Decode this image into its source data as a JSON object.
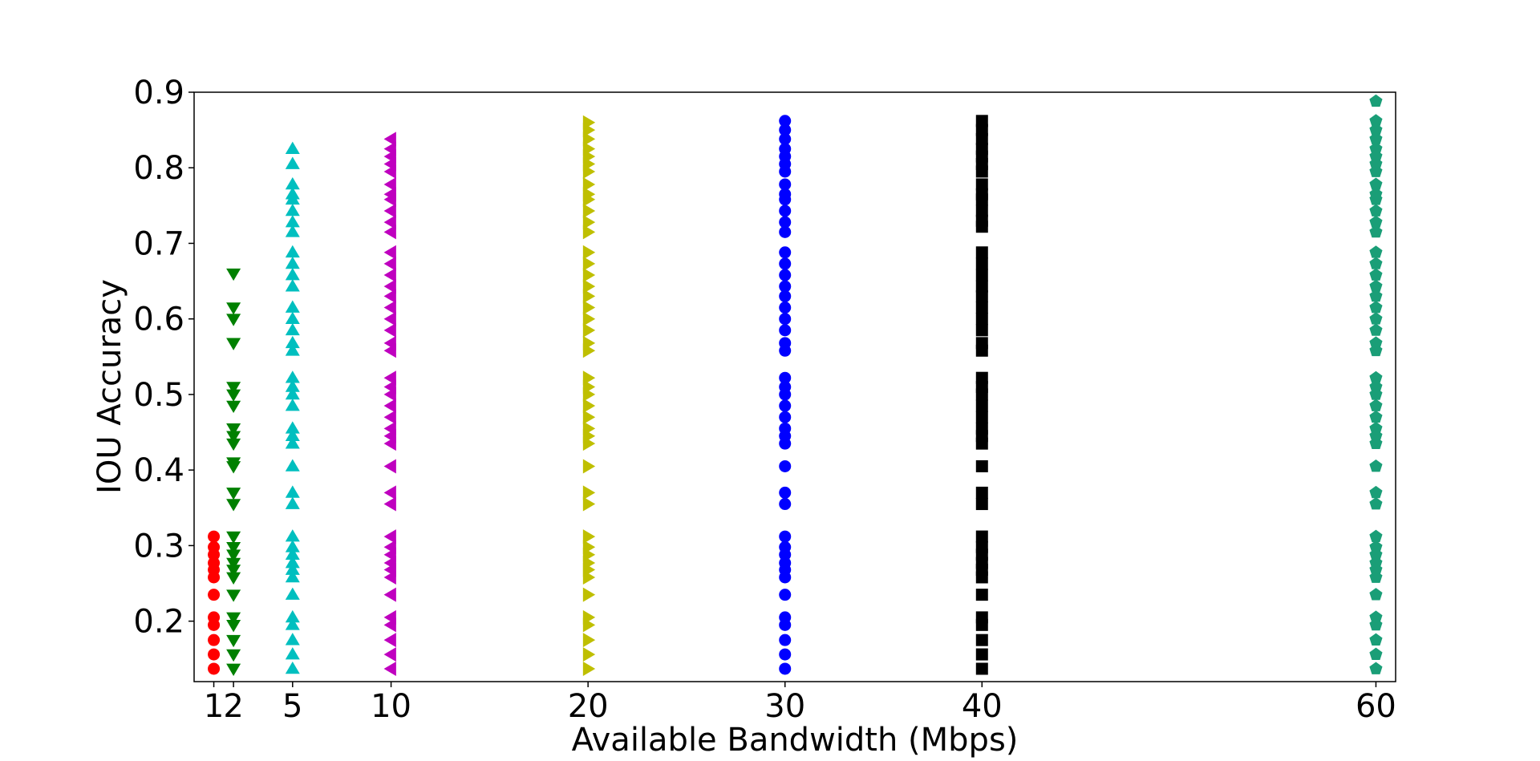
{
  "chart_data": {
    "type": "scatter",
    "title": "",
    "xlabel": "Available Bandwidth (Mbps)",
    "ylabel": "IOU Accuracy",
    "xlim": [
      0,
      61
    ],
    "ylim": [
      0.12,
      0.9
    ],
    "grid": false,
    "x_ticks": [
      {
        "value": 1,
        "label": "1"
      },
      {
        "value": 2,
        "label": "2"
      },
      {
        "value": 5,
        "label": "5"
      },
      {
        "value": 10,
        "label": "10"
      },
      {
        "value": 20,
        "label": "20"
      },
      {
        "value": 30,
        "label": "30"
      },
      {
        "value": 40,
        "label": "40"
      },
      {
        "value": 60,
        "label": "60"
      }
    ],
    "y_ticks": [
      {
        "value": 0.2,
        "label": "0.2"
      },
      {
        "value": 0.3,
        "label": "0.3"
      },
      {
        "value": 0.4,
        "label": "0.4"
      },
      {
        "value": 0.5,
        "label": "0.5"
      },
      {
        "value": 0.6,
        "label": "0.6"
      },
      {
        "value": 0.7,
        "label": "0.7"
      },
      {
        "value": 0.8,
        "label": "0.8"
      },
      {
        "value": 0.9,
        "label": "0.9"
      }
    ],
    "series": [
      {
        "x": 1,
        "marker": "circle",
        "color": "#ff0000",
        "y": [
          0.137,
          0.156,
          0.175,
          0.195,
          0.205,
          0.235,
          0.258,
          0.268,
          0.277,
          0.288,
          0.298,
          0.312
        ]
      },
      {
        "x": 2,
        "marker": "triangle-down",
        "color": "#008000",
        "y": [
          0.137,
          0.156,
          0.175,
          0.195,
          0.205,
          0.235,
          0.258,
          0.268,
          0.277,
          0.288,
          0.298,
          0.312,
          0.355,
          0.37,
          0.405,
          0.41,
          0.435,
          0.445,
          0.455,
          0.485,
          0.5,
          0.51,
          0.568,
          0.6,
          0.615,
          0.66
        ]
      },
      {
        "x": 5,
        "marker": "triangle-up",
        "color": "#00bfbf",
        "y": [
          0.137,
          0.156,
          0.175,
          0.195,
          0.205,
          0.235,
          0.258,
          0.268,
          0.277,
          0.288,
          0.298,
          0.312,
          0.355,
          0.37,
          0.405,
          0.435,
          0.445,
          0.455,
          0.485,
          0.5,
          0.51,
          0.522,
          0.558,
          0.568,
          0.585,
          0.6,
          0.615,
          0.643,
          0.658,
          0.673,
          0.688,
          0.715,
          0.728,
          0.743,
          0.758,
          0.765,
          0.778,
          0.805,
          0.825
        ]
      },
      {
        "x": 10,
        "marker": "triangle-left",
        "color": "#bf00bf",
        "y": [
          0.137,
          0.156,
          0.175,
          0.195,
          0.205,
          0.235,
          0.258,
          0.268,
          0.277,
          0.288,
          0.298,
          0.312,
          0.355,
          0.37,
          0.405,
          0.435,
          0.445,
          0.455,
          0.47,
          0.485,
          0.5,
          0.51,
          0.522,
          0.558,
          0.568,
          0.585,
          0.6,
          0.615,
          0.63,
          0.643,
          0.658,
          0.673,
          0.688,
          0.715,
          0.728,
          0.743,
          0.758,
          0.765,
          0.778,
          0.795,
          0.805,
          0.815,
          0.825,
          0.838
        ]
      },
      {
        "x": 20,
        "marker": "triangle-right",
        "color": "#bfbf00",
        "y": [
          0.137,
          0.156,
          0.175,
          0.195,
          0.205,
          0.235,
          0.258,
          0.268,
          0.277,
          0.288,
          0.298,
          0.312,
          0.355,
          0.37,
          0.405,
          0.435,
          0.445,
          0.455,
          0.47,
          0.485,
          0.5,
          0.51,
          0.522,
          0.558,
          0.568,
          0.585,
          0.6,
          0.615,
          0.63,
          0.643,
          0.658,
          0.673,
          0.688,
          0.715,
          0.728,
          0.743,
          0.758,
          0.765,
          0.778,
          0.795,
          0.805,
          0.815,
          0.825,
          0.838,
          0.85,
          0.86
        ]
      },
      {
        "x": 30,
        "marker": "circle",
        "color": "#0000ff",
        "y": [
          0.137,
          0.156,
          0.175,
          0.195,
          0.205,
          0.235,
          0.258,
          0.268,
          0.277,
          0.288,
          0.298,
          0.312,
          0.355,
          0.37,
          0.405,
          0.435,
          0.445,
          0.455,
          0.47,
          0.485,
          0.5,
          0.51,
          0.522,
          0.558,
          0.568,
          0.585,
          0.6,
          0.615,
          0.63,
          0.643,
          0.658,
          0.673,
          0.688,
          0.715,
          0.728,
          0.743,
          0.758,
          0.765,
          0.778,
          0.795,
          0.805,
          0.815,
          0.825,
          0.838,
          0.85,
          0.862
        ]
      },
      {
        "x": 40,
        "marker": "square",
        "color": "#000000",
        "y": [
          0.137,
          0.156,
          0.175,
          0.195,
          0.205,
          0.235,
          0.258,
          0.268,
          0.277,
          0.288,
          0.298,
          0.312,
          0.355,
          0.37,
          0.405,
          0.435,
          0.445,
          0.455,
          0.47,
          0.485,
          0.5,
          0.51,
          0.522,
          0.558,
          0.568,
          0.585,
          0.6,
          0.615,
          0.63,
          0.643,
          0.658,
          0.673,
          0.688,
          0.722,
          0.73,
          0.743,
          0.758,
          0.765,
          0.778,
          0.795,
          0.805,
          0.815,
          0.825,
          0.838,
          0.85,
          0.862
        ]
      },
      {
        "x": 60,
        "marker": "pentagon",
        "color": "#1a9e77",
        "y": [
          0.137,
          0.156,
          0.175,
          0.195,
          0.205,
          0.235,
          0.258,
          0.268,
          0.277,
          0.288,
          0.298,
          0.312,
          0.355,
          0.37,
          0.405,
          0.435,
          0.445,
          0.455,
          0.47,
          0.485,
          0.5,
          0.51,
          0.522,
          0.558,
          0.568,
          0.585,
          0.6,
          0.615,
          0.63,
          0.643,
          0.658,
          0.673,
          0.688,
          0.715,
          0.728,
          0.743,
          0.758,
          0.765,
          0.778,
          0.795,
          0.805,
          0.815,
          0.825,
          0.838,
          0.85,
          0.862,
          0.888
        ]
      }
    ]
  }
}
